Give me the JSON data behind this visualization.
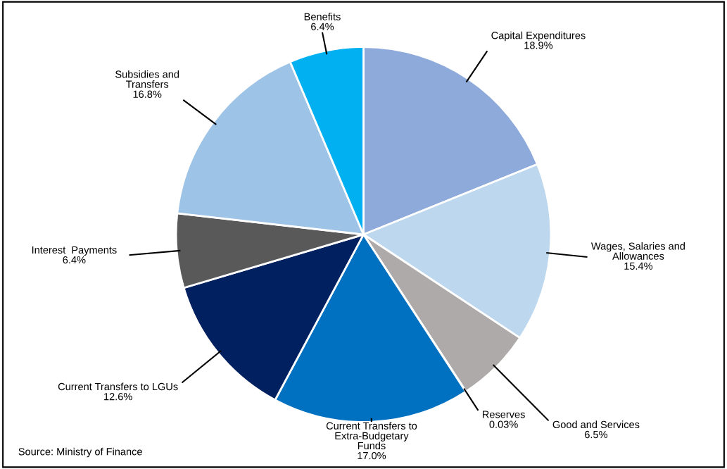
{
  "chart_data": {
    "type": "pie",
    "categories": [
      "Capital Expenditures",
      "Wages, Salaries and\nAllowances",
      "Good and Services",
      "Reserves",
      "Current Transfers to\nExtra-Budgetary\nFunds",
      "Current Transfers to LGUs",
      "Interest  Payments",
      "Subsidies and\nTransfers",
      "Benefits"
    ],
    "values": [
      18.9,
      15.4,
      6.5,
      0.03,
      17.0,
      12.6,
      6.4,
      16.8,
      6.4
    ],
    "value_labels": [
      "18.9%",
      "15.4%",
      "6.5%",
      "0.03%",
      "17.0%",
      "12.6%",
      "6.4%",
      "16.8%",
      "6.4%"
    ],
    "colors": [
      "#8eaadb",
      "#bdd7ee",
      "#aeaaaa",
      "#d9d9d9",
      "#0070c0",
      "#002060",
      "#595959",
      "#9dc3e6",
      "#00b0f0"
    ],
    "annotations": [
      "Source: Ministry of Finance"
    ],
    "legend": false
  }
}
